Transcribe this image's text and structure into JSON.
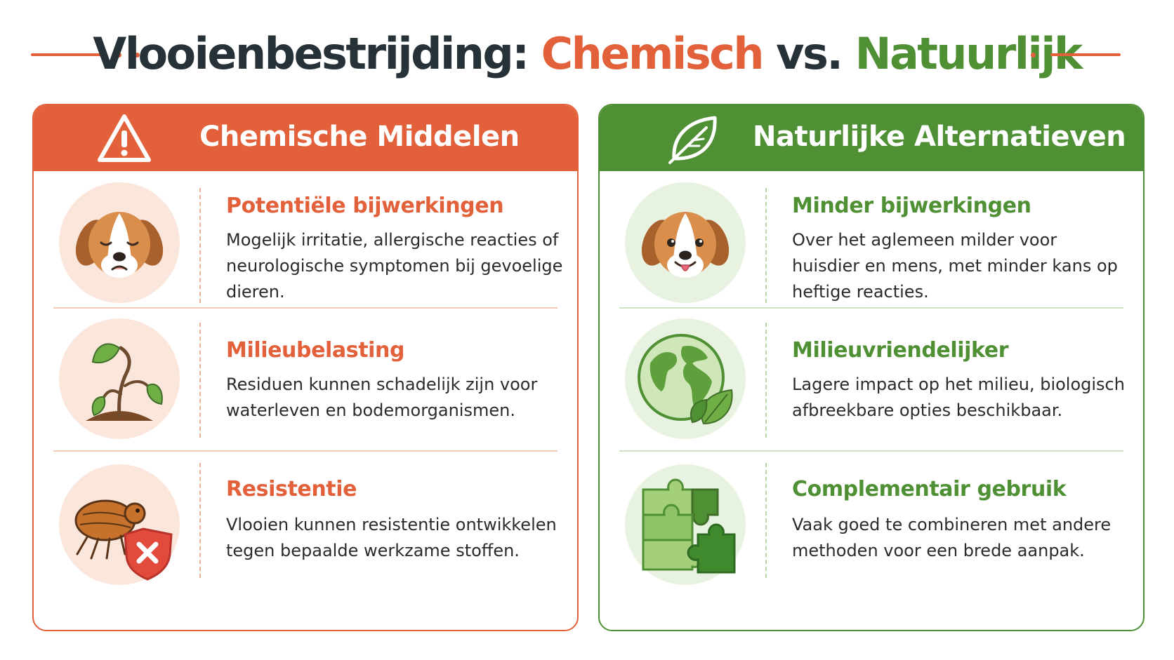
{
  "title": {
    "part1": "Vlooienbestrijding: ",
    "part2": "Chemisch",
    "part3": " vs. ",
    "part4": "Natuurlijk"
  },
  "colors": {
    "chemical": "#e2603a",
    "natural": "#4f9035",
    "title": "#263238"
  },
  "chemical": {
    "header": "Chemische Middelen",
    "header_icon": "warning-triangle-icon",
    "items": [
      {
        "icon": "sad-dog-icon",
        "title": "Potentiële bijwerkingen",
        "desc": "Mogelijk irritatie, allergische reacties of neurologische symptomen bij gevoelige dieren."
      },
      {
        "icon": "wilting-plant-icon",
        "title": "Milieubelasting",
        "desc": "Residuen kunnen schadelijk zijn voor waterleven en bodemorganismen."
      },
      {
        "icon": "flea-shield-icon",
        "title": "Resistentie",
        "desc": "Vlooien kunnen resistentie ontwikkelen tegen bepaalde werkzame stoffen."
      }
    ]
  },
  "natural": {
    "header": "Naturlijke Alternatieven",
    "header_icon": "leaf-icon",
    "items": [
      {
        "icon": "happy-dog-icon",
        "title": "Minder bijwerkingen",
        "desc": "Over het aglemeen milder voor huisdier en mens, met minder kans op heftige reacties."
      },
      {
        "icon": "globe-leaf-icon",
        "title": "Milieuvriendelijker",
        "desc": "Lagere impact op het milieu, biologisch afbreekbare opties beschikbaar."
      },
      {
        "icon": "puzzle-icon",
        "title": "Complementair gebruik",
        "desc": "Vaak goed te combineren met andere methoden voor een brede aanpak."
      }
    ]
  }
}
